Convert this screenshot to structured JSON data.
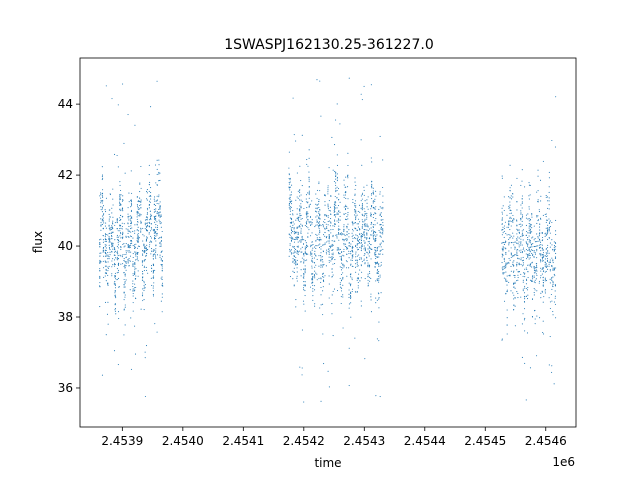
{
  "chart_data": {
    "type": "scatter",
    "title": "1SWASPJ162130.25-361227.0",
    "xlabel": "time",
    "ylabel": "flux",
    "x_offset_label": "1e6",
    "xlim": [
      2453830,
      2454650
    ],
    "ylim": [
      34.9,
      45.3
    ],
    "x_ticks": [
      2453900,
      2454000,
      2454100,
      2454200,
      2454300,
      2454400,
      2454500,
      2454600
    ],
    "x_tick_labels": [
      "2.4539",
      "2.4540",
      "2.4541",
      "2.4542",
      "2.4543",
      "2.4544",
      "2.4545",
      "2.4546"
    ],
    "y_ticks": [
      36,
      38,
      40,
      42,
      44
    ],
    "y_tick_labels": [
      "36",
      "38",
      "40",
      "42",
      "44"
    ],
    "grid": false,
    "legend": "none",
    "marker_color": "#1f77b4",
    "series": [
      {
        "seasons": [
          {
            "x_start": 2453862,
            "x_end": 2453968,
            "y_center": 40.1,
            "y_spread": 0.55,
            "outlier_range": [
              35.4,
              44.8
            ]
          },
          {
            "x_start": 2454175,
            "x_end": 2454332,
            "y_center": 40.2,
            "y_spread": 0.6,
            "outlier_range": [
              35.4,
              44.8
            ]
          },
          {
            "x_start": 2454527,
            "x_end": 2454618,
            "y_center": 39.9,
            "y_spread": 0.65,
            "outlier_range": [
              35.5,
              44.6
            ]
          }
        ]
      }
    ]
  }
}
